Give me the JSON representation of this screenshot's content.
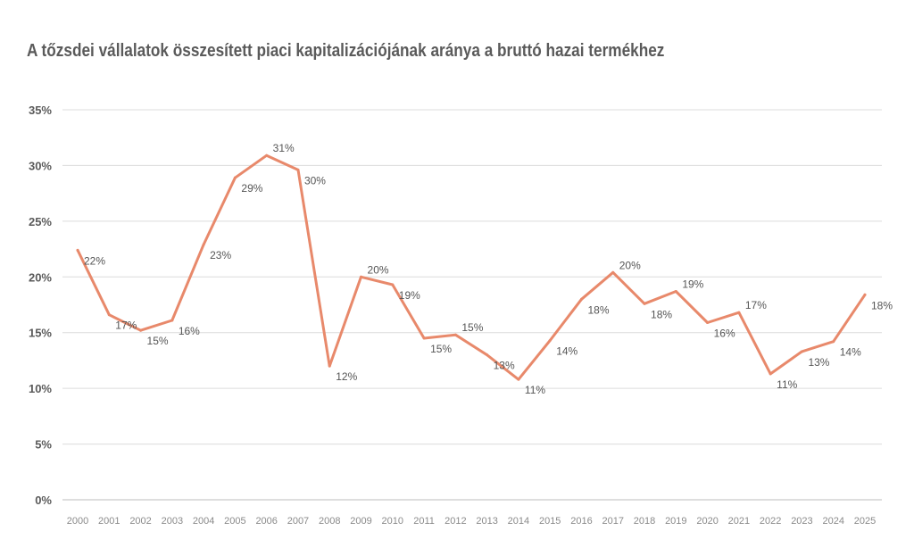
{
  "chart_data": {
    "type": "line",
    "title": "A tőzsdei vállalatok összesített piaci kapitalizációjának aránya a bruttó hazai termékhez",
    "xlabel": "",
    "ylabel": "",
    "ylim": [
      0,
      35
    ],
    "yticks": [
      "0%",
      "5%",
      "10%",
      "15%",
      "20%",
      "25%",
      "30%",
      "35%"
    ],
    "grid": true,
    "legend": "none",
    "categories": [
      "2000",
      "2001",
      "2002",
      "2003",
      "2004",
      "2005",
      "2006",
      "2007",
      "2008",
      "2009",
      "2010",
      "2011",
      "2012",
      "2013",
      "2014",
      "2015",
      "2016",
      "2017",
      "2018",
      "2019",
      "2020",
      "2021",
      "2022",
      "2023",
      "2024",
      "2025"
    ],
    "series": [
      {
        "color": "#e8896b",
        "values": [
          22.4,
          16.6,
          15.2,
          16.1,
          22.9,
          28.9,
          30.9,
          29.6,
          12.0,
          20.0,
          19.3,
          14.5,
          14.8,
          13.0,
          10.8,
          14.3,
          18.0,
          20.4,
          17.6,
          18.7,
          15.9,
          16.8,
          11.3,
          13.3,
          14.2,
          18.4
        ],
        "labels": [
          "22%",
          "17%",
          "15%",
          "16%",
          "23%",
          "29%",
          "31%",
          "30%",
          "12%",
          "20%",
          "19%",
          "15%",
          "15%",
          "13%",
          "11%",
          "14%",
          "18%",
          "20%",
          "18%",
          "19%",
          "16%",
          "17%",
          "11%",
          "13%",
          "14%",
          "18%"
        ]
      }
    ]
  }
}
